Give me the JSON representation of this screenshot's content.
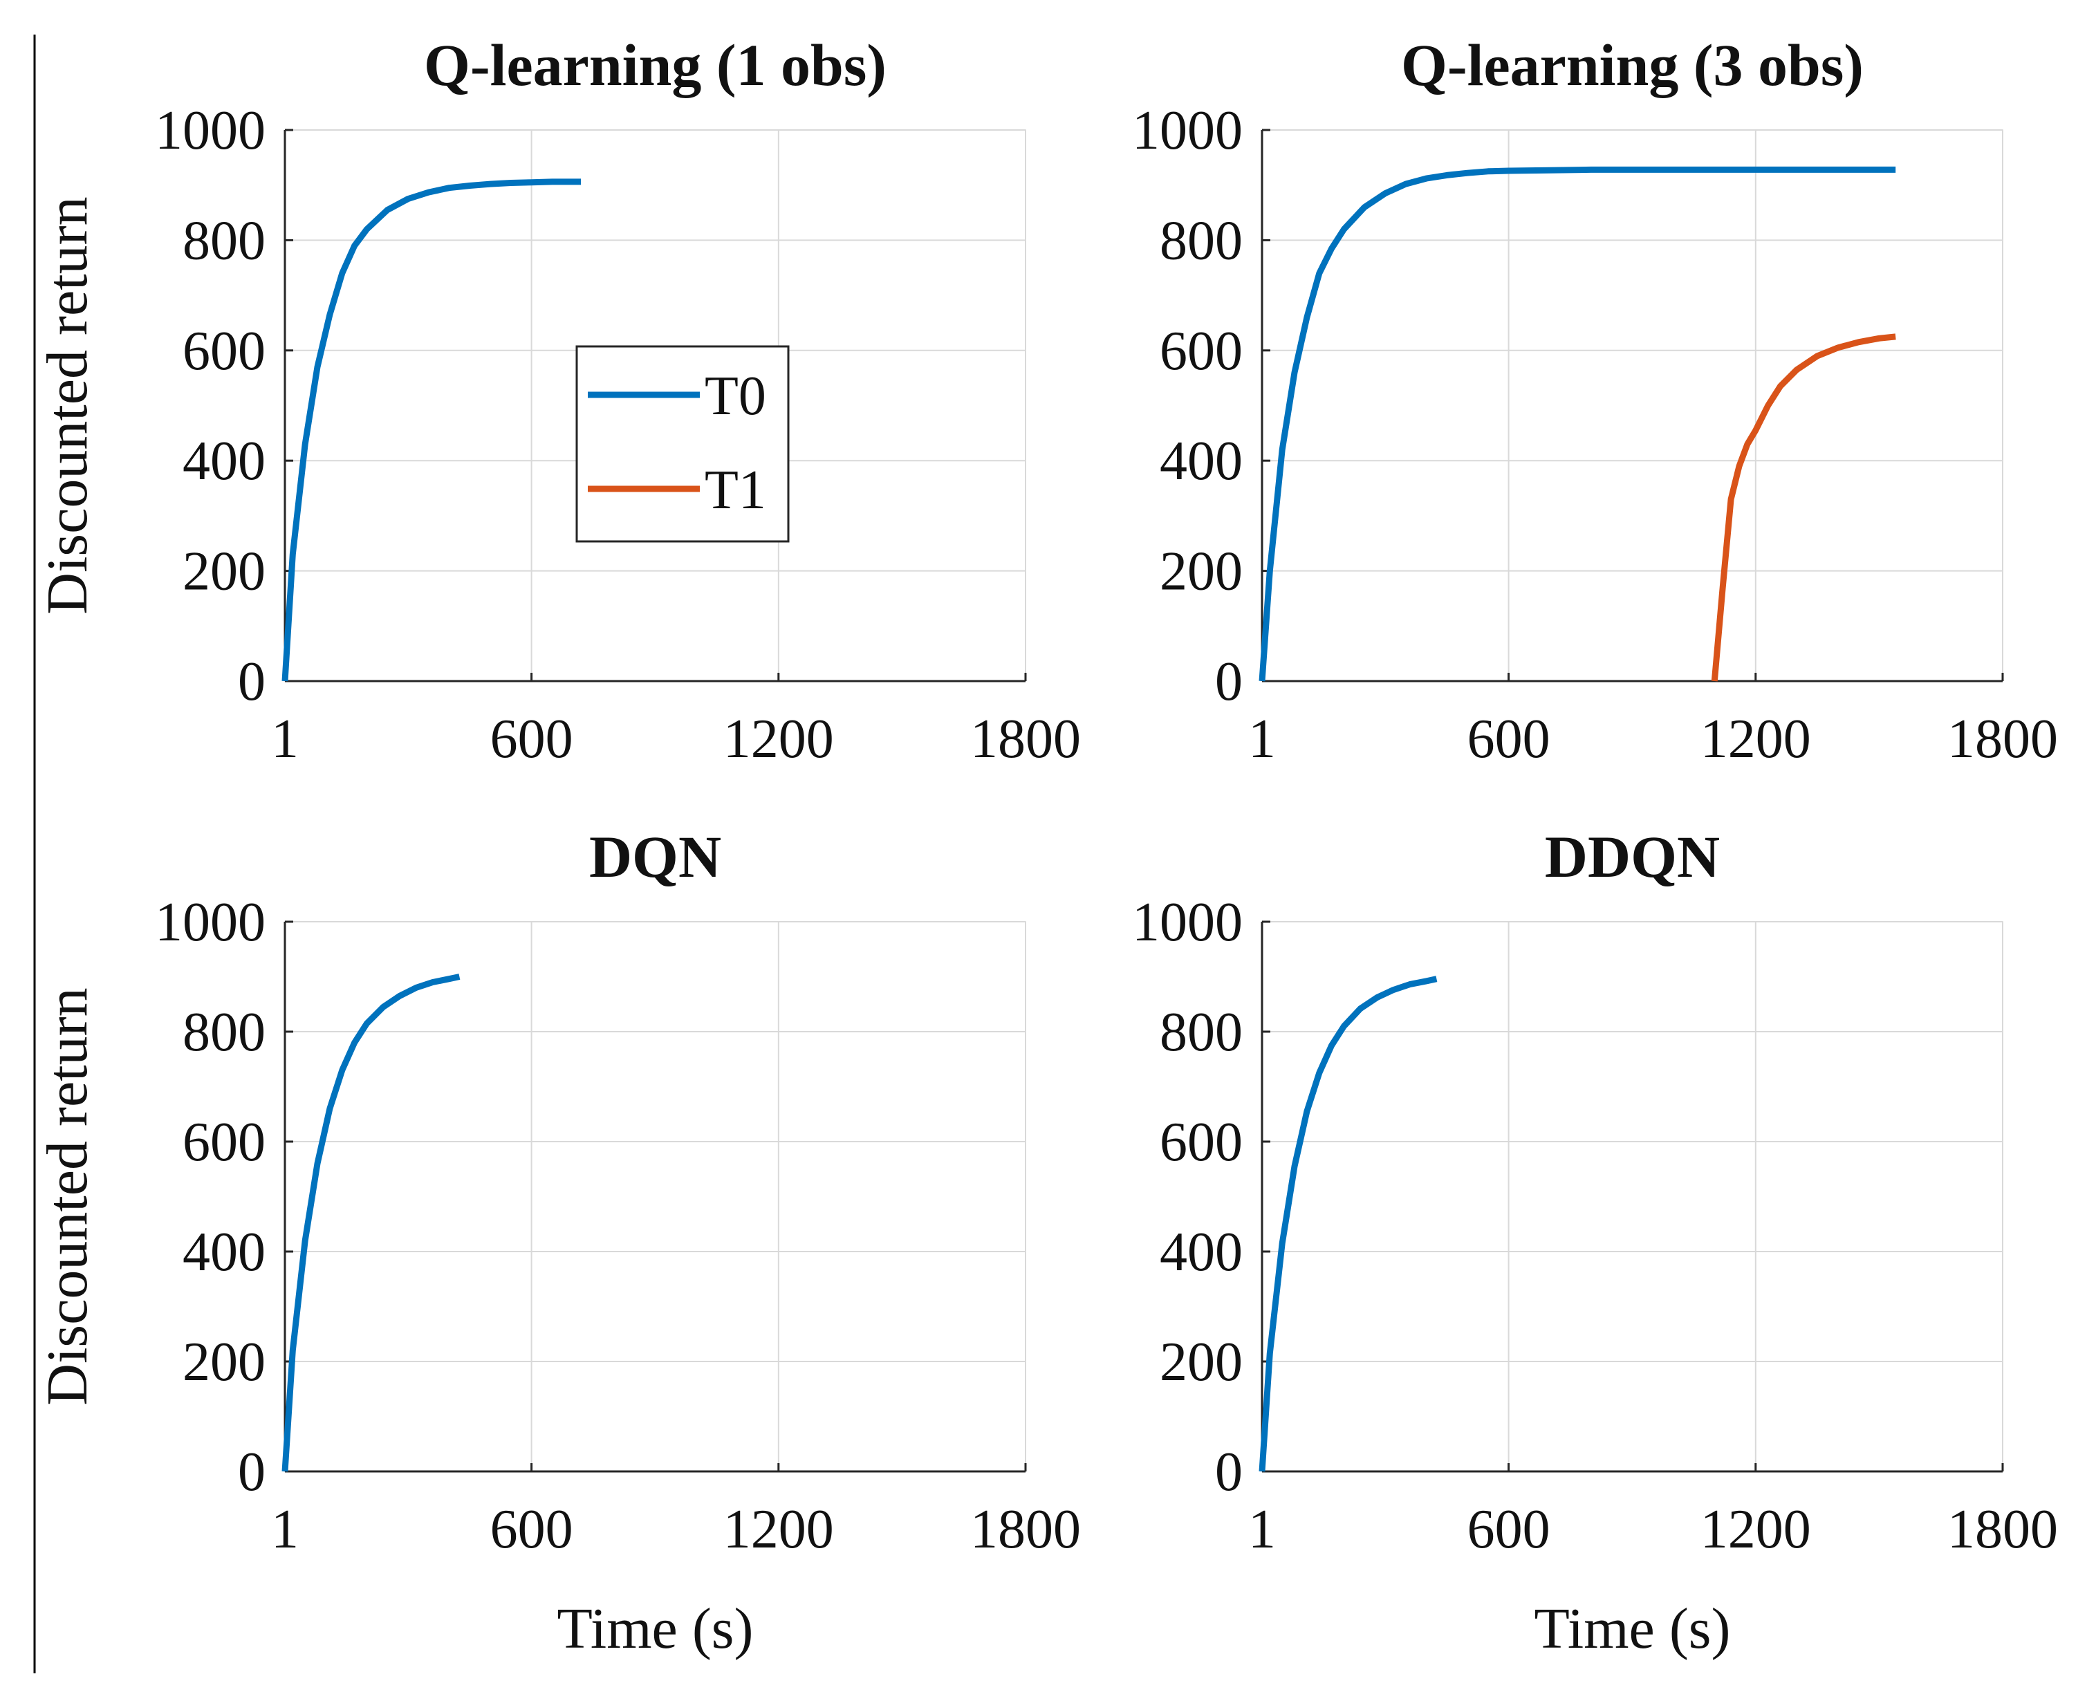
{
  "colors": {
    "T0": "#0072BD",
    "T1": "#D95319"
  },
  "legend": {
    "entries": [
      "T0",
      "T1"
    ]
  },
  "chart_data": [
    {
      "type": "line",
      "title": "Q-learning (1 obs)",
      "xlabel": "",
      "ylabel": "Discounted return",
      "xlim": [
        1,
        1800
      ],
      "ylim": [
        0,
        1000
      ],
      "xticks": [
        1,
        600,
        1200,
        1800
      ],
      "yticks": [
        0,
        200,
        400,
        600,
        800,
        1000
      ],
      "grid": true,
      "legend_position": "center",
      "series": [
        {
          "name": "T0",
          "x": [
            1,
            20,
            50,
            80,
            110,
            140,
            170,
            200,
            250,
            300,
            350,
            400,
            450,
            500,
            550,
            600,
            650,
            720
          ],
          "y": [
            0,
            230,
            430,
            570,
            665,
            740,
            790,
            820,
            855,
            875,
            887,
            895,
            899,
            902,
            904,
            905,
            906,
            906
          ]
        }
      ]
    },
    {
      "type": "line",
      "title": "Q-learning (3 obs)",
      "xlabel": "",
      "ylabel": "",
      "xlim": [
        1,
        1800
      ],
      "ylim": [
        0,
        1000
      ],
      "xticks": [
        1,
        600,
        1200,
        1800
      ],
      "yticks": [
        0,
        200,
        400,
        600,
        800,
        1000
      ],
      "grid": true,
      "series": [
        {
          "name": "T0",
          "x": [
            1,
            20,
            50,
            80,
            110,
            140,
            170,
            200,
            250,
            300,
            350,
            400,
            450,
            500,
            550,
            600,
            700,
            800,
            1000,
            1200,
            1400,
            1540
          ],
          "y": [
            0,
            200,
            420,
            560,
            660,
            740,
            785,
            820,
            860,
            885,
            902,
            912,
            918,
            922,
            925,
            926,
            927,
            928,
            928,
            928,
            928,
            928
          ]
        },
        {
          "name": "T1",
          "x": [
            1100,
            1120,
            1140,
            1160,
            1180,
            1200,
            1230,
            1260,
            1300,
            1350,
            1400,
            1450,
            1500,
            1540
          ],
          "y": [
            0,
            170,
            330,
            390,
            430,
            455,
            500,
            535,
            565,
            590,
            605,
            615,
            622,
            625
          ]
        }
      ]
    },
    {
      "type": "line",
      "title": "DQN",
      "xlabel": "Time (s)",
      "ylabel": "Discounted return",
      "xlim": [
        1,
        1800
      ],
      "ylim": [
        0,
        1000
      ],
      "xticks": [
        1,
        600,
        1200,
        1800
      ],
      "yticks": [
        0,
        200,
        400,
        600,
        800,
        1000
      ],
      "grid": true,
      "series": [
        {
          "name": "T0",
          "x": [
            1,
            20,
            50,
            80,
            110,
            140,
            170,
            200,
            240,
            280,
            320,
            360,
            400,
            425
          ],
          "y": [
            0,
            220,
            420,
            560,
            660,
            730,
            780,
            815,
            845,
            865,
            880,
            890,
            896,
            900
          ]
        }
      ]
    },
    {
      "type": "line",
      "title": "DDQN",
      "xlabel": "Time (s)",
      "ylabel": "",
      "xlim": [
        1,
        1800
      ],
      "ylim": [
        0,
        1000
      ],
      "xticks": [
        1,
        600,
        1200,
        1800
      ],
      "yticks": [
        0,
        200,
        400,
        600,
        800,
        1000
      ],
      "grid": true,
      "series": [
        {
          "name": "T0",
          "x": [
            1,
            20,
            50,
            80,
            110,
            140,
            170,
            200,
            240,
            280,
            320,
            360,
            400,
            425
          ],
          "y": [
            0,
            215,
            415,
            555,
            655,
            725,
            775,
            810,
            842,
            862,
            876,
            886,
            892,
            896
          ]
        }
      ]
    }
  ]
}
